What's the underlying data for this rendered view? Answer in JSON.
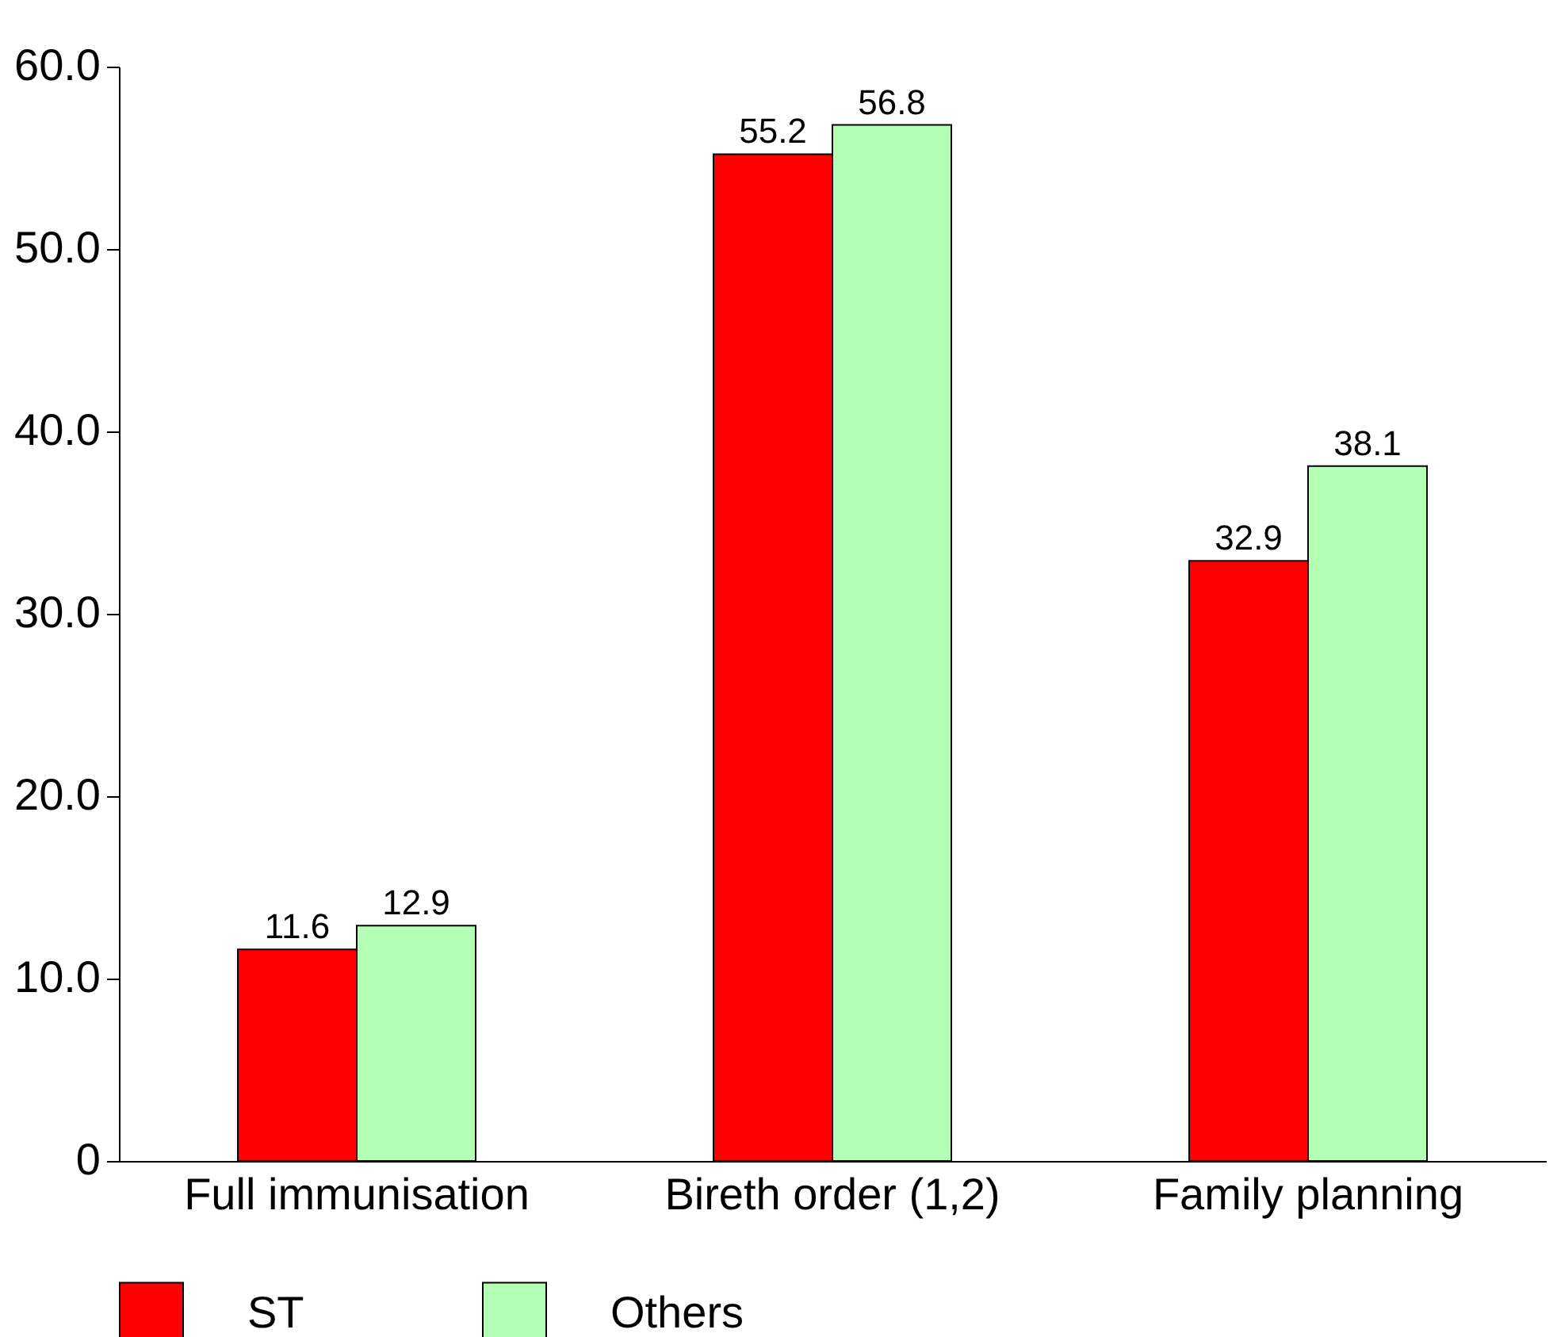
{
  "chart_data": {
    "type": "bar",
    "categories": [
      "Full immunisation",
      "Bireth order (1,2)",
      "Family planning"
    ],
    "series": [
      {
        "name": "ST",
        "color": "#ff0000",
        "values": [
          11.6,
          55.2,
          32.9
        ]
      },
      {
        "name": "Others",
        "color": "#b3ffb3",
        "values": [
          12.9,
          56.8,
          38.1
        ]
      }
    ],
    "ylim": [
      0,
      60
    ],
    "yticks": [
      {
        "value": 0,
        "label": "0"
      },
      {
        "value": 10,
        "label": "10.0"
      },
      {
        "value": 20,
        "label": "20.0"
      },
      {
        "value": 30,
        "label": "30.0"
      },
      {
        "value": 40,
        "label": "40.0"
      },
      {
        "value": 50,
        "label": "50.0"
      },
      {
        "value": 60,
        "label": "60.0"
      }
    ],
    "grid": false,
    "legend": "bottom",
    "data_labels": true
  }
}
